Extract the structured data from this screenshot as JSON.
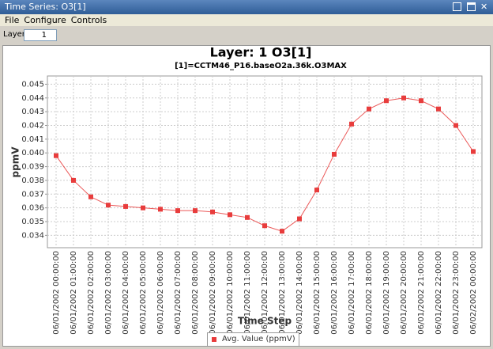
{
  "window": {
    "title": "Time Series: O3[1]"
  },
  "menu": [
    "File",
    "Configure",
    "Controls"
  ],
  "layer_control": {
    "label": "Layer:",
    "value": 1
  },
  "chart_data": {
    "type": "line",
    "title": "Layer: 1 O3[1]",
    "subtitle": "[1]=CCTM46_P16.baseO2a.36k.O3MAX",
    "x_label": "Time Step",
    "y_label": "ppmV",
    "categories": [
      "06/01/2002 00:00:00",
      "06/01/2002 01:00:00",
      "06/01/2002 02:00:00",
      "06/01/2002 03:00:00",
      "06/01/2002 04:00:00",
      "06/01/2002 05:00:00",
      "06/01/2002 06:00:00",
      "06/01/2002 07:00:00",
      "06/01/2002 08:00:00",
      "06/01/2002 09:00:00",
      "06/01/2002 10:00:00",
      "06/01/2002 11:00:00",
      "06/01/2002 12:00:00",
      "06/01/2002 13:00:00",
      "06/01/2002 14:00:00",
      "06/01/2002 15:00:00",
      "06/01/2002 16:00:00",
      "06/01/2002 17:00:00",
      "06/01/2002 18:00:00",
      "06/01/2002 19:00:00",
      "06/01/2002 20:00:00",
      "06/01/2002 21:00:00",
      "06/01/2002 22:00:00",
      "06/01/2002 23:00:00",
      "06/02/2002 00:00:00"
    ],
    "series": [
      {
        "name": "Avg. Value (ppmV)",
        "color": "#e83c3c",
        "values": [
          0.0398,
          0.038,
          0.0368,
          0.0362,
          0.0361,
          0.036,
          0.0359,
          0.0358,
          0.0358,
          0.0357,
          0.0355,
          0.0353,
          0.0347,
          0.0343,
          0.0352,
          0.0373,
          0.0399,
          0.0421,
          0.0432,
          0.0438,
          0.044,
          0.0438,
          0.0432,
          0.042,
          0.0401
        ]
      }
    ],
    "ylim": [
      0.0331,
      0.0456
    ],
    "yticks": [
      0.034,
      0.035,
      0.036,
      0.037,
      0.038,
      0.039,
      {
        "value": 0.04,
        "label": "0.040"
      },
      0.041,
      0.042,
      0.043,
      0.044,
      0.045
    ],
    "grid": true,
    "legend": "bottom"
  }
}
